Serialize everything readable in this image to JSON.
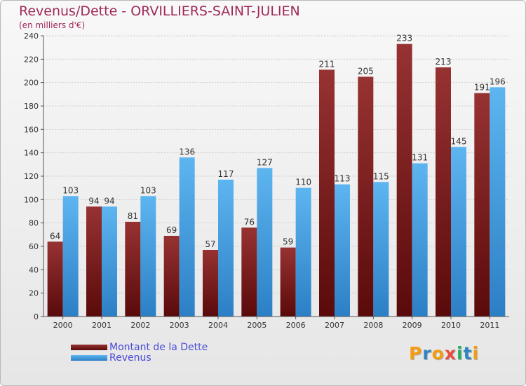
{
  "chart_data": {
    "type": "bar",
    "title": "Revenus/Dette - ORVILLIERS-SAINT-JULIEN",
    "subtitle": "(en milliers d'€)",
    "xlabel": "",
    "ylabel": "",
    "ylim": [
      0,
      240
    ],
    "yticks": [
      0,
      20,
      40,
      60,
      80,
      100,
      120,
      140,
      160,
      180,
      200,
      220,
      240
    ],
    "grid": true,
    "legend_position": "bottom-left",
    "categories": [
      "2000",
      "2001",
      "2002",
      "2003",
      "2004",
      "2005",
      "2006",
      "2007",
      "2008",
      "2009",
      "2010",
      "2011"
    ],
    "series": [
      {
        "name": "Montant de la Dette",
        "color": "#7a1f1f",
        "values": [
          64,
          94,
          81,
          69,
          57,
          76,
          59,
          211,
          205,
          233,
          213,
          191
        ]
      },
      {
        "name": "Revenus",
        "color": "#4aa3e6",
        "values": [
          103,
          94,
          103,
          136,
          117,
          127,
          110,
          113,
          115,
          131,
          145,
          196
        ]
      }
    ]
  },
  "logo": {
    "text": "Proxiti",
    "letters": [
      "P",
      "r",
      "o",
      "x",
      "i",
      "t",
      "i"
    ],
    "colors": [
      "#f39c12",
      "#2e86c1",
      "#f39c12",
      "#e74c3c",
      "#27ae60",
      "#2e86c1",
      "#f39c12"
    ]
  }
}
